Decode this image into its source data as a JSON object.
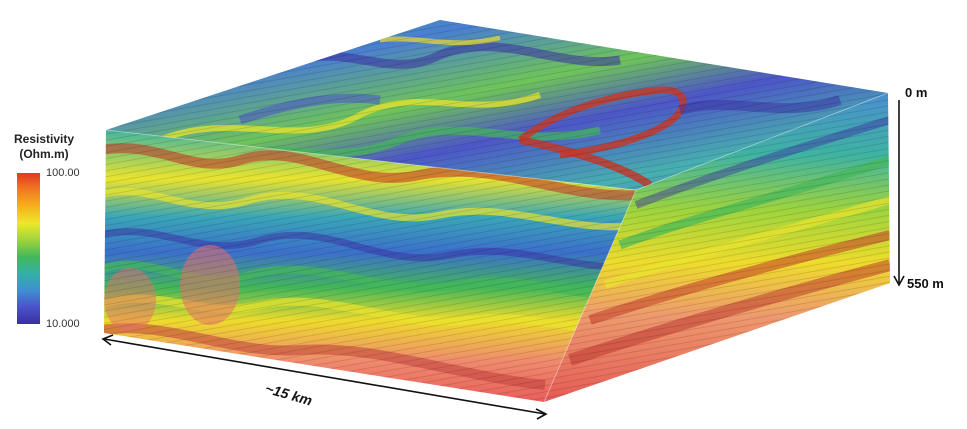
{
  "legend": {
    "title_line1": "Resistivity",
    "title_line2": "(Ohm.m)",
    "max_label": "100.00",
    "min_label": "10.000",
    "colors": [
      "#e03a22",
      "#f07a22",
      "#f6b21f",
      "#eee72a",
      "#9ed43d",
      "#44b85a",
      "#34b0a6",
      "#3f8fd2",
      "#4b52c8",
      "#3a2fa2"
    ]
  },
  "depth_axis": {
    "top_label": "0 m",
    "bottom_label": "550 m"
  },
  "distance_label": "~15 km"
}
